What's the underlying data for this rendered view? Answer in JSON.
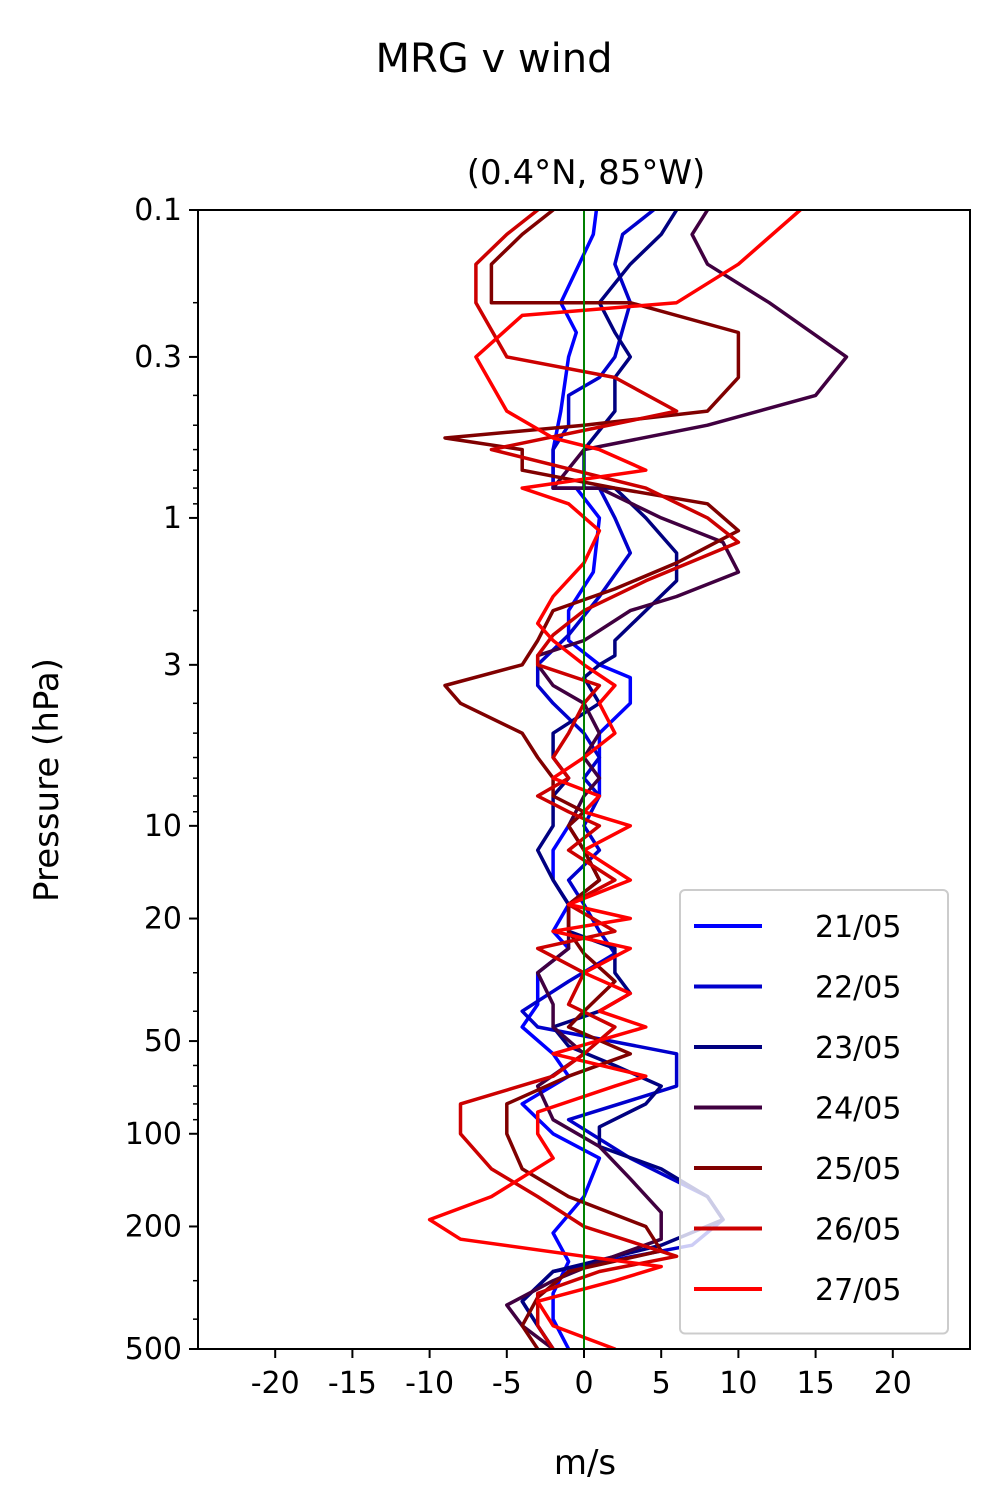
{
  "chart_data": {
    "type": "line",
    "title": "MRG v wind",
    "subtitle": "(0.4°N, 85°W)",
    "xlabel": "m/s",
    "ylabel": "Pressure (hPa)",
    "xlim": [
      -25,
      25
    ],
    "ylim": [
      500,
      0.1
    ],
    "yscale": "log",
    "x_ticks": [
      -20,
      -15,
      -10,
      -5,
      0,
      5,
      10,
      15,
      20
    ],
    "x_tick_labels": [
      "-20",
      "-15",
      "-10",
      "-5",
      "0",
      "5",
      "10",
      "15",
      "20"
    ],
    "y_ticks": [
      0.1,
      0.3,
      1,
      3,
      10,
      20,
      50,
      100,
      200,
      500
    ],
    "y_tick_labels": [
      "0.1",
      "0.3",
      "1",
      "3",
      "10",
      "20",
      "50",
      "100",
      "200",
      "500"
    ],
    "reference_line": {
      "x": 0,
      "color": "#008000"
    },
    "legend_position": "lower-right",
    "series": [
      {
        "name": "21/05",
        "color": "#0000ff",
        "points": [
          [
            0.8,
            0.1
          ],
          [
            0.6,
            0.12
          ],
          [
            -1.5,
            0.2
          ],
          [
            -0.5,
            0.25
          ],
          [
            -1,
            0.3
          ],
          [
            -1.5,
            0.45
          ],
          [
            -2,
            0.6
          ],
          [
            -2,
            0.8
          ],
          [
            -0.5,
            0.8
          ],
          [
            1,
            1
          ],
          [
            0.6,
            1.5
          ],
          [
            -1,
            2
          ],
          [
            -1,
            2.5
          ],
          [
            1,
            3
          ],
          [
            3,
            3.3
          ],
          [
            3,
            4
          ],
          [
            1,
            5
          ],
          [
            1,
            6
          ],
          [
            1,
            7
          ],
          [
            1,
            8
          ],
          [
            0,
            9
          ],
          [
            -1,
            10
          ],
          [
            -2,
            12
          ],
          [
            -2,
            15
          ],
          [
            -1,
            18
          ],
          [
            -2,
            22
          ],
          [
            -1,
            25
          ],
          [
            -3,
            30
          ],
          [
            -3,
            38
          ],
          [
            -4,
            45
          ],
          [
            -2,
            55
          ],
          [
            -1,
            65
          ],
          [
            -4,
            80
          ],
          [
            -2,
            100
          ],
          [
            1,
            120
          ],
          [
            0,
            160
          ],
          [
            -2,
            210
          ],
          [
            -1,
            260
          ],
          [
            -2,
            330
          ],
          [
            -2,
            400
          ],
          [
            -1,
            500
          ]
        ]
      },
      {
        "name": "22/05",
        "color": "#0000cc",
        "points": [
          [
            4.5,
            0.1
          ],
          [
            2.5,
            0.12
          ],
          [
            2,
            0.15
          ],
          [
            3,
            0.2
          ],
          [
            2,
            0.3
          ],
          [
            1,
            0.35
          ],
          [
            -1,
            0.4
          ],
          [
            -1,
            0.5
          ],
          [
            -2,
            0.6
          ],
          [
            -2,
            0.8
          ],
          [
            1,
            0.8
          ],
          [
            2,
            1
          ],
          [
            3,
            1.3
          ],
          [
            1,
            1.8
          ],
          [
            -1,
            2.4
          ],
          [
            -3,
            3
          ],
          [
            -3,
            3.5
          ],
          [
            -2,
            4
          ],
          [
            0,
            5
          ],
          [
            1,
            6
          ],
          [
            0,
            7
          ],
          [
            1,
            8
          ],
          [
            0,
            10
          ],
          [
            1,
            12
          ],
          [
            -1,
            15
          ],
          [
            0,
            18
          ],
          [
            1,
            22
          ],
          [
            2,
            26
          ],
          [
            -1,
            32
          ],
          [
            -4,
            40
          ],
          [
            -3,
            45
          ],
          [
            6,
            55
          ],
          [
            6,
            70
          ],
          [
            -1,
            90
          ],
          [
            3,
            120
          ],
          [
            8,
            160
          ],
          [
            9,
            190
          ],
          [
            7,
            230
          ],
          [
            -2,
            280
          ],
          [
            -4,
            350
          ],
          [
            -3,
            420
          ],
          [
            -2,
            500
          ]
        ]
      },
      {
        "name": "23/05",
        "color": "#000080",
        "points": [
          [
            6,
            0.1
          ],
          [
            5,
            0.12
          ],
          [
            3,
            0.15
          ],
          [
            1,
            0.2
          ],
          [
            2,
            0.25
          ],
          [
            3,
            0.3
          ],
          [
            2,
            0.35
          ],
          [
            2,
            0.45
          ],
          [
            0,
            0.6
          ],
          [
            0,
            0.8
          ],
          [
            2,
            0.8
          ],
          [
            4,
            1
          ],
          [
            6,
            1.3
          ],
          [
            6,
            1.6
          ],
          [
            4,
            2
          ],
          [
            2,
            2.5
          ],
          [
            2,
            2.8
          ],
          [
            1,
            3
          ],
          [
            0,
            3.3
          ],
          [
            1,
            4
          ],
          [
            -2,
            5
          ],
          [
            -2,
            6
          ],
          [
            -1,
            7
          ],
          [
            -2,
            8
          ],
          [
            -2,
            10
          ],
          [
            -3,
            12
          ],
          [
            -2,
            15
          ],
          [
            -1,
            18
          ],
          [
            -1,
            22
          ],
          [
            2,
            25
          ],
          [
            2,
            30
          ],
          [
            3,
            35
          ],
          [
            1,
            40
          ],
          [
            -2,
            45
          ],
          [
            -1,
            52
          ],
          [
            2,
            60
          ],
          [
            5,
            70
          ],
          [
            4,
            80
          ],
          [
            1,
            95
          ],
          [
            1,
            110
          ],
          [
            5,
            130
          ],
          [
            8,
            160
          ],
          [
            9,
            190
          ],
          [
            5,
            230
          ],
          [
            -2,
            280
          ],
          [
            -4,
            350
          ],
          [
            -3,
            420
          ],
          [
            -2,
            500
          ]
        ]
      },
      {
        "name": "24/05",
        "color": "#400040",
        "points": [
          [
            8,
            0.1
          ],
          [
            7,
            0.12
          ],
          [
            8,
            0.15
          ],
          [
            12,
            0.2
          ],
          [
            17,
            0.3
          ],
          [
            15,
            0.4
          ],
          [
            8,
            0.5
          ],
          [
            0,
            0.6
          ],
          [
            -2,
            0.8
          ],
          [
            1,
            0.8
          ],
          [
            5,
            1
          ],
          [
            9,
            1.2
          ],
          [
            10,
            1.5
          ],
          [
            6,
            1.8
          ],
          [
            3,
            2
          ],
          [
            0,
            2.5
          ],
          [
            -3,
            2.8
          ],
          [
            -3,
            3
          ],
          [
            -2,
            3.5
          ],
          [
            0,
            4
          ],
          [
            1,
            5
          ],
          [
            0,
            6
          ],
          [
            1,
            7
          ],
          [
            0,
            8
          ],
          [
            -1,
            10
          ],
          [
            0,
            12
          ],
          [
            1,
            15
          ],
          [
            -1,
            18
          ],
          [
            -1,
            22
          ],
          [
            -1,
            25
          ],
          [
            -3,
            30
          ],
          [
            -2,
            38
          ],
          [
            -2,
            45
          ],
          [
            0,
            55
          ],
          [
            -3,
            70
          ],
          [
            -2,
            90
          ],
          [
            1,
            110
          ],
          [
            3,
            140
          ],
          [
            5,
            180
          ],
          [
            5,
            220
          ],
          [
            1,
            260
          ],
          [
            -2,
            300
          ],
          [
            -5,
            360
          ],
          [
            -4,
            420
          ],
          [
            -2,
            500
          ]
        ]
      },
      {
        "name": "25/05",
        "color": "#800000",
        "points": [
          [
            -2,
            0.1
          ],
          [
            -4,
            0.12
          ],
          [
            -6,
            0.15
          ],
          [
            -6,
            0.2
          ],
          [
            3,
            0.2
          ],
          [
            10,
            0.25
          ],
          [
            10,
            0.35
          ],
          [
            8,
            0.45
          ],
          [
            0,
            0.5
          ],
          [
            -9,
            0.55
          ],
          [
            -4,
            0.6
          ],
          [
            -4,
            0.7
          ],
          [
            2,
            0.8
          ],
          [
            8,
            0.9
          ],
          [
            10,
            1.1
          ],
          [
            6,
            1.4
          ],
          [
            2,
            1.7
          ],
          [
            -2,
            2
          ],
          [
            -3,
            2.5
          ],
          [
            -4,
            3
          ],
          [
            -9,
            3.5
          ],
          [
            -8,
            4
          ],
          [
            -4,
            5
          ],
          [
            -3,
            6
          ],
          [
            -2,
            7
          ],
          [
            -2,
            8
          ],
          [
            0,
            9
          ],
          [
            -1,
            10
          ],
          [
            0,
            12
          ],
          [
            1,
            15
          ],
          [
            -1,
            18
          ],
          [
            -1,
            22
          ],
          [
            0,
            26
          ],
          [
            2,
            32
          ],
          [
            0,
            40
          ],
          [
            -1,
            45
          ],
          [
            3,
            55
          ],
          [
            -1,
            65
          ],
          [
            -5,
            80
          ],
          [
            -5,
            100
          ],
          [
            -4,
            130
          ],
          [
            -1,
            160
          ],
          [
            4,
            200
          ],
          [
            5,
            240
          ],
          [
            -1,
            280
          ],
          [
            -3,
            340
          ],
          [
            -4,
            420
          ],
          [
            -3,
            500
          ]
        ]
      },
      {
        "name": "26/05",
        "color": "#cc0000",
        "points": [
          [
            -3,
            0.1
          ],
          [
            -5,
            0.12
          ],
          [
            -7,
            0.15
          ],
          [
            -7,
            0.2
          ],
          [
            -5,
            0.3
          ],
          [
            2,
            0.35
          ],
          [
            6,
            0.45
          ],
          [
            -6,
            0.6
          ],
          [
            4,
            0.8
          ],
          [
            8,
            1
          ],
          [
            10,
            1.2
          ],
          [
            4,
            1.6
          ],
          [
            0,
            2
          ],
          [
            -2,
            2.4
          ],
          [
            -3,
            2.8
          ],
          [
            -3,
            3
          ],
          [
            1,
            3.5
          ],
          [
            0,
            4
          ],
          [
            -1,
            5
          ],
          [
            -2,
            6
          ],
          [
            -1,
            7
          ],
          [
            -3,
            8
          ],
          [
            -1,
            9
          ],
          [
            1,
            10
          ],
          [
            -1,
            12
          ],
          [
            2,
            15
          ],
          [
            -1,
            18
          ],
          [
            2,
            22
          ],
          [
            -3,
            25
          ],
          [
            0,
            30
          ],
          [
            -1,
            38
          ],
          [
            2,
            45
          ],
          [
            0,
            55
          ],
          [
            -2,
            65
          ],
          [
            -8,
            80
          ],
          [
            -8,
            100
          ],
          [
            -6,
            130
          ],
          [
            -3,
            160
          ],
          [
            0,
            200
          ],
          [
            6,
            250
          ],
          [
            1,
            280
          ],
          [
            -3,
            330
          ],
          [
            -3,
            420
          ],
          [
            -2,
            500
          ]
        ]
      },
      {
        "name": "27/05",
        "color": "#ff0000",
        "points": [
          [
            14,
            0.1
          ],
          [
            10,
            0.15
          ],
          [
            6,
            0.2
          ],
          [
            -4,
            0.22
          ],
          [
            -7,
            0.3
          ],
          [
            -5,
            0.45
          ],
          [
            -2,
            0.55
          ],
          [
            1,
            0.6
          ],
          [
            4,
            0.7
          ],
          [
            -4,
            0.8
          ],
          [
            -1,
            0.9
          ],
          [
            1,
            1.1
          ],
          [
            0,
            1.4
          ],
          [
            -2,
            1.8
          ],
          [
            -3,
            2.2
          ],
          [
            -2,
            2.5
          ],
          [
            0,
            3
          ],
          [
            2,
            3.5
          ],
          [
            1,
            4
          ],
          [
            2,
            5
          ],
          [
            0,
            6
          ],
          [
            -2,
            7
          ],
          [
            1,
            8
          ],
          [
            0,
            9
          ],
          [
            3,
            10
          ],
          [
            0,
            12
          ],
          [
            3,
            15
          ],
          [
            -1,
            18
          ],
          [
            3,
            20
          ],
          [
            -2,
            22
          ],
          [
            3,
            25
          ],
          [
            0,
            30
          ],
          [
            3,
            35
          ],
          [
            1,
            40
          ],
          [
            4,
            45
          ],
          [
            -2,
            55
          ],
          [
            4,
            65
          ],
          [
            2,
            70
          ],
          [
            -3,
            85
          ],
          [
            -3,
            100
          ],
          [
            -2,
            120
          ],
          [
            -6,
            160
          ],
          [
            -10,
            190
          ],
          [
            -8,
            220
          ],
          [
            0,
            250
          ],
          [
            5,
            270
          ],
          [
            2,
            300
          ],
          [
            -3,
            350
          ],
          [
            -2,
            420
          ],
          [
            2,
            500
          ]
        ]
      }
    ]
  }
}
